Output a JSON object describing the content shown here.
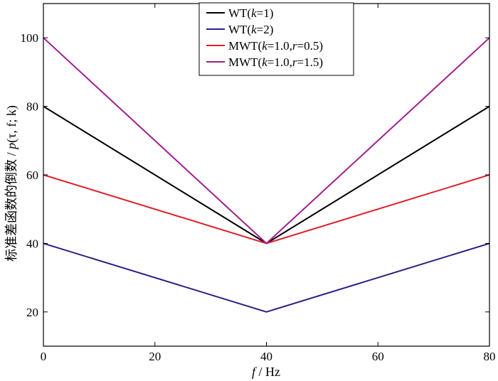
{
  "chart_data": {
    "type": "line",
    "title": "",
    "xlabel": "f / Hz",
    "ylabel": "标准差函数的倒数 / p(τ, f; k)",
    "xlim": [
      0,
      80
    ],
    "ylim": [
      10,
      110
    ],
    "xticks": [
      0,
      20,
      40,
      60,
      80
    ],
    "yticks": [
      20,
      40,
      60,
      80,
      100
    ],
    "legend_position": "top-center",
    "series": [
      {
        "name": "WT(k=1)",
        "color": "#000000",
        "x": [
          0,
          40,
          80
        ],
        "y": [
          80,
          40,
          80
        ]
      },
      {
        "name": "WT(k=2)",
        "color": "#2b1f86",
        "x": [
          0,
          40,
          80
        ],
        "y": [
          40,
          20,
          40
        ]
      },
      {
        "name": "MWT(k=1.0,r=0.5)",
        "color": "#e0202a",
        "x": [
          0,
          40,
          80
        ],
        "y": [
          60,
          40,
          60
        ]
      },
      {
        "name": "MWT(k=1.0,r=1.5)",
        "color": "#a0208f",
        "x": [
          0,
          40,
          80
        ],
        "y": [
          100,
          40,
          100
        ]
      }
    ]
  }
}
